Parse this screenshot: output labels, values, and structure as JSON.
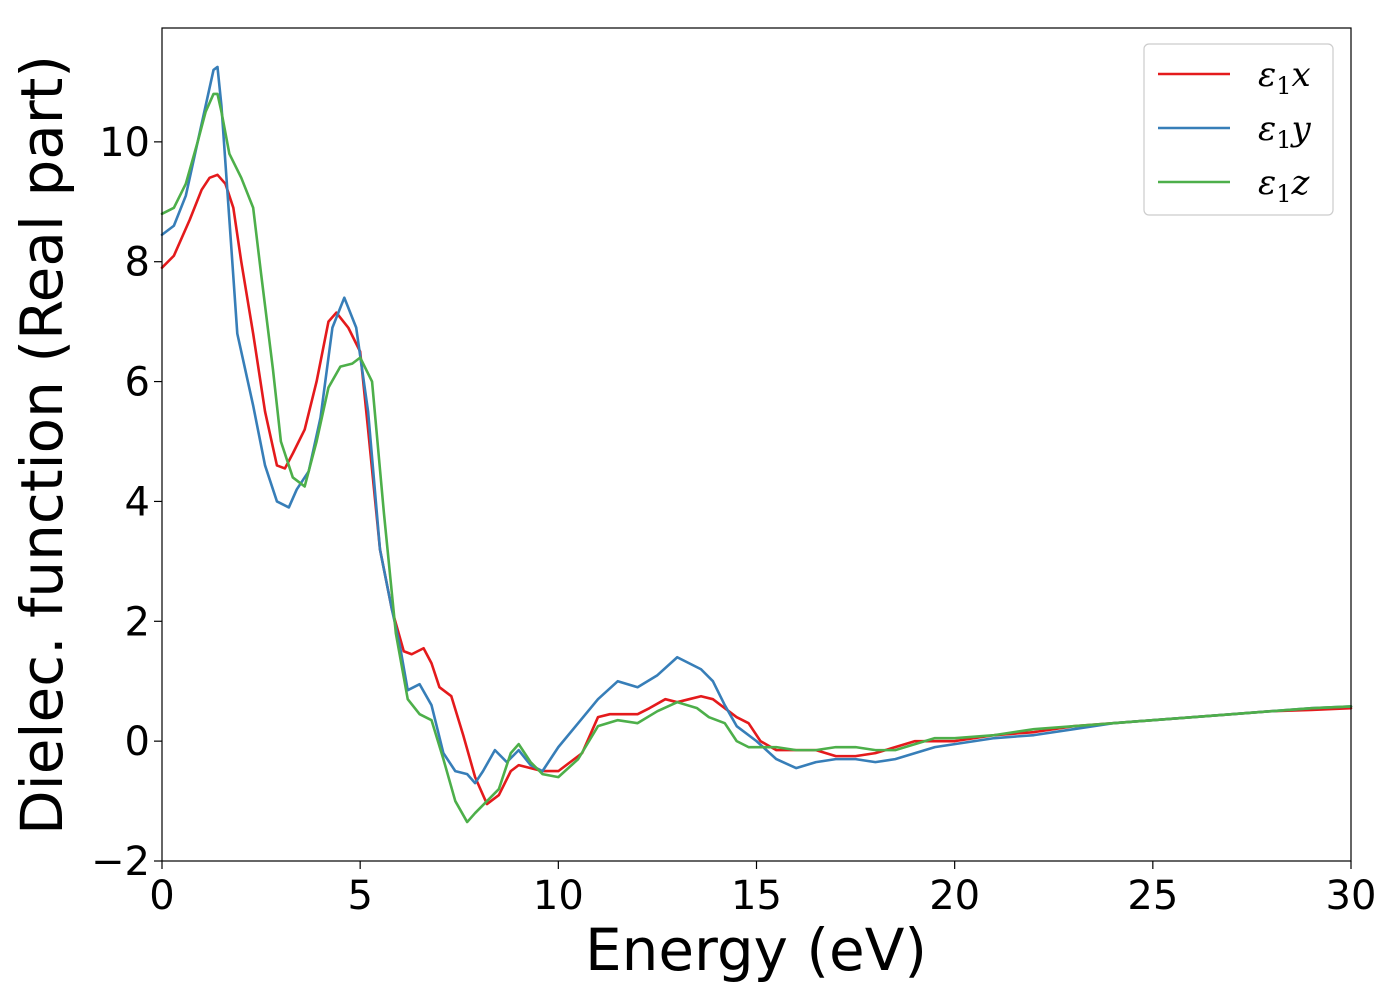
{
  "chart_data": {
    "type": "line",
    "xlabel": "Energy (eV)",
    "ylabel": "Dielec. function (Real part)",
    "xlim": [
      0,
      30
    ],
    "ylim": [
      -2,
      11.9
    ],
    "xticks": [
      0,
      5,
      10,
      15,
      20,
      25,
      30
    ],
    "xtick_labels": [
      "0",
      "5",
      "10",
      "15",
      "20",
      "25",
      "30"
    ],
    "yticks": [
      -2,
      0,
      2,
      4,
      6,
      8,
      10
    ],
    "ytick_labels": [
      "−2",
      "0",
      "2",
      "4",
      "6",
      "8",
      "10"
    ],
    "grid": false,
    "legend_position": "top-right",
    "series": [
      {
        "name": "ε1x",
        "name_base": "ε",
        "name_sub": "1",
        "name_suffix": "x",
        "color": "#e41a1c",
        "x": [
          0,
          0.3,
          0.7,
          1.0,
          1.2,
          1.4,
          1.6,
          1.8,
          2.0,
          2.3,
          2.6,
          2.9,
          3.1,
          3.3,
          3.6,
          3.9,
          4.2,
          4.4,
          4.7,
          5.0,
          5.2,
          5.5,
          5.8,
          6.1,
          6.3,
          6.6,
          6.8,
          7.0,
          7.3,
          7.6,
          7.9,
          8.2,
          8.5,
          8.8,
          9.0,
          9.3,
          9.6,
          10.0,
          10.3,
          10.6,
          11.0,
          11.3,
          11.6,
          12.0,
          12.3,
          12.7,
          13.0,
          13.3,
          13.6,
          13.9,
          14.2,
          14.5,
          14.8,
          15.1,
          15.5,
          16.0,
          16.5,
          17.0,
          17.5,
          18.0,
          18.5,
          19.0,
          19.5,
          20.0,
          21.0,
          22.0,
          23.0,
          24.0,
          25.0,
          26.0,
          27.0,
          28.0,
          29.0,
          30.0
        ],
        "values": [
          7.9,
          8.1,
          8.7,
          9.2,
          9.4,
          9.45,
          9.3,
          8.9,
          8.0,
          6.8,
          5.5,
          4.6,
          4.55,
          4.8,
          5.2,
          6.0,
          7.0,
          7.15,
          6.9,
          6.5,
          5.2,
          3.2,
          2.2,
          1.5,
          1.45,
          1.55,
          1.3,
          0.9,
          0.75,
          0.1,
          -0.6,
          -1.05,
          -0.9,
          -0.5,
          -0.4,
          -0.45,
          -0.5,
          -0.5,
          -0.35,
          -0.2,
          0.4,
          0.45,
          0.45,
          0.45,
          0.55,
          0.7,
          0.65,
          0.7,
          0.75,
          0.7,
          0.55,
          0.4,
          0.3,
          0.0,
          -0.15,
          -0.15,
          -0.15,
          -0.25,
          -0.25,
          -0.2,
          -0.1,
          0.0,
          0.0,
          0.0,
          0.1,
          0.15,
          0.25,
          0.3,
          0.35,
          0.4,
          0.45,
          0.5,
          0.52,
          0.55
        ]
      },
      {
        "name": "ε1y",
        "name_base": "ε",
        "name_sub": "1",
        "name_suffix": "y",
        "color": "#377eb8",
        "x": [
          0,
          0.3,
          0.6,
          0.9,
          1.1,
          1.3,
          1.4,
          1.5,
          1.7,
          1.9,
          2.1,
          2.3,
          2.6,
          2.9,
          3.2,
          3.4,
          3.7,
          4.0,
          4.3,
          4.6,
          4.9,
          5.2,
          5.5,
          5.8,
          6.0,
          6.2,
          6.5,
          6.8,
          7.1,
          7.4,
          7.7,
          7.9,
          8.1,
          8.4,
          8.7,
          9.0,
          9.3,
          9.6,
          10.0,
          10.5,
          11.0,
          11.5,
          12.0,
          12.5,
          13.0,
          13.3,
          13.6,
          13.9,
          14.2,
          14.5,
          15.0,
          15.5,
          16.0,
          16.5,
          17.0,
          17.5,
          18.0,
          18.5,
          19.0,
          19.5,
          20.0,
          20.5,
          21.0,
          22.0,
          23.0,
          24.0,
          25.0,
          26.0,
          27.0,
          28.0,
          29.0,
          30.0
        ],
        "values": [
          8.45,
          8.6,
          9.1,
          10.0,
          10.6,
          11.2,
          11.25,
          10.6,
          8.7,
          6.8,
          6.2,
          5.6,
          4.6,
          4.0,
          3.9,
          4.2,
          4.5,
          5.4,
          6.9,
          7.4,
          6.9,
          5.5,
          3.2,
          2.2,
          1.6,
          0.85,
          0.95,
          0.6,
          -0.2,
          -0.5,
          -0.55,
          -0.7,
          -0.5,
          -0.15,
          -0.35,
          -0.15,
          -0.4,
          -0.5,
          -0.1,
          0.3,
          0.7,
          1.0,
          0.9,
          1.1,
          1.4,
          1.3,
          1.2,
          1.0,
          0.6,
          0.25,
          0.0,
          -0.3,
          -0.45,
          -0.35,
          -0.3,
          -0.3,
          -0.35,
          -0.3,
          -0.2,
          -0.1,
          -0.05,
          0.0,
          0.05,
          0.1,
          0.2,
          0.3,
          0.35,
          0.4,
          0.45,
          0.5,
          0.55,
          0.58
        ]
      },
      {
        "name": "ε1z",
        "name_base": "ε",
        "name_sub": "1",
        "name_suffix": "z",
        "color": "#4daf4a",
        "x": [
          0,
          0.3,
          0.6,
          0.9,
          1.1,
          1.3,
          1.4,
          1.5,
          1.7,
          2.0,
          2.3,
          2.5,
          2.8,
          3.0,
          3.3,
          3.6,
          3.9,
          4.2,
          4.5,
          4.8,
          5.0,
          5.3,
          5.6,
          5.9,
          6.2,
          6.5,
          6.8,
          7.1,
          7.4,
          7.7,
          7.9,
          8.2,
          8.5,
          8.8,
          9.0,
          9.3,
          9.6,
          10.0,
          10.5,
          11.0,
          11.5,
          12.0,
          12.5,
          13.0,
          13.5,
          13.8,
          14.2,
          14.5,
          14.8,
          15.0,
          15.5,
          16.0,
          16.5,
          17.0,
          17.5,
          18.0,
          18.5,
          19.0,
          19.5,
          20.0,
          21.0,
          22.0,
          23.0,
          24.0,
          25.0,
          26.0,
          27.0,
          28.0,
          29.0,
          30.0
        ],
        "values": [
          8.8,
          8.9,
          9.3,
          10.0,
          10.5,
          10.8,
          10.8,
          10.5,
          9.8,
          9.4,
          8.9,
          7.8,
          6.2,
          5.0,
          4.4,
          4.25,
          5.0,
          5.9,
          6.25,
          6.3,
          6.4,
          6.0,
          3.8,
          1.8,
          0.7,
          0.45,
          0.35,
          -0.3,
          -1.0,
          -1.35,
          -1.2,
          -1.0,
          -0.8,
          -0.2,
          -0.05,
          -0.35,
          -0.55,
          -0.6,
          -0.3,
          0.25,
          0.35,
          0.3,
          0.5,
          0.65,
          0.55,
          0.4,
          0.3,
          0.0,
          -0.1,
          -0.1,
          -0.1,
          -0.15,
          -0.15,
          -0.1,
          -0.1,
          -0.15,
          -0.15,
          -0.05,
          0.05,
          0.05,
          0.1,
          0.2,
          0.25,
          0.3,
          0.35,
          0.4,
          0.45,
          0.5,
          0.55,
          0.58
        ]
      }
    ]
  }
}
